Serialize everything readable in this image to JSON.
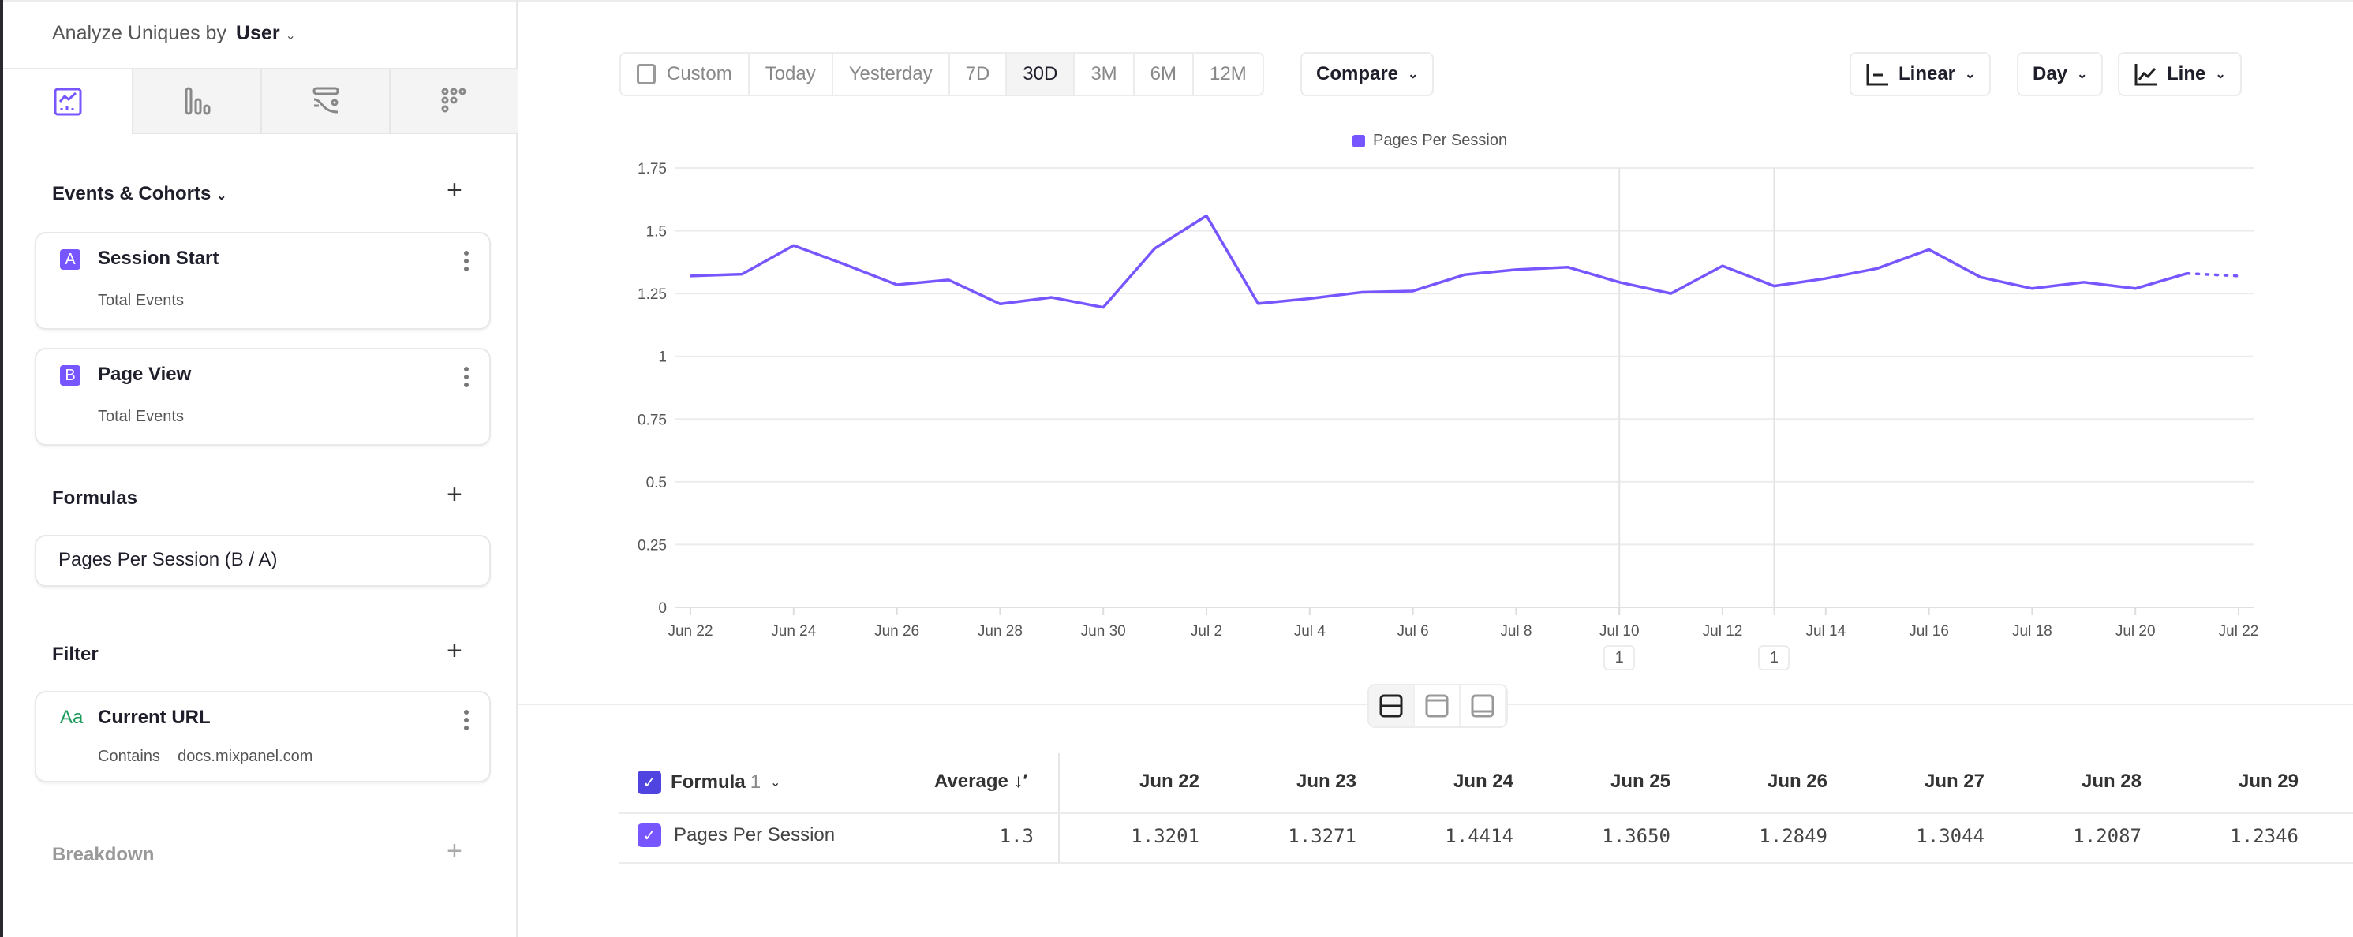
{
  "sidebar": {
    "analyze_label": "Analyze Uniques by",
    "analyze_value": "User",
    "tabs": [
      {
        "icon": "insights-icon",
        "active": true
      },
      {
        "icon": "funnels-icon"
      },
      {
        "icon": "flows-icon"
      },
      {
        "icon": "retention-icon"
      }
    ],
    "events_title": "Events & Cohorts",
    "events": [
      {
        "letter": "A",
        "name": "Session Start",
        "measure": "Total Events"
      },
      {
        "letter": "B",
        "name": "Page View",
        "measure": "Total Events"
      }
    ],
    "formulas_title": "Formulas",
    "formula": "Pages Per Session (B / A)",
    "filter_title": "Filter",
    "filter": {
      "type_icon": "Aa",
      "property": "Current URL",
      "operator": "Contains",
      "value": "docs.mixpanel.com"
    },
    "breakdown_title": "Breakdown"
  },
  "toolbar": {
    "date_ranges": [
      "Custom",
      "Today",
      "Yesterday",
      "7D",
      "30D",
      "3M",
      "6M",
      "12M"
    ],
    "selected_range": "30D",
    "compare": "Compare",
    "scale": "Linear",
    "interval": "Day",
    "chart_type": "Line"
  },
  "colors": {
    "accent": "#7856ff",
    "formula_check": "#4f44e0",
    "filter_icon": "#1a9a5b"
  },
  "chart_data": {
    "type": "line",
    "legend": [
      "Pages Per Session"
    ],
    "x": [
      "Jun 22",
      "Jun 23",
      "Jun 24",
      "Jun 25",
      "Jun 26",
      "Jun 27",
      "Jun 28",
      "Jun 29",
      "Jun 30",
      "Jul 1",
      "Jul 2",
      "Jul 3",
      "Jul 4",
      "Jul 5",
      "Jul 6",
      "Jul 7",
      "Jul 8",
      "Jul 9",
      "Jul 10",
      "Jul 11",
      "Jul 12",
      "Jul 13",
      "Jul 14",
      "Jul 15",
      "Jul 16",
      "Jul 17",
      "Jul 18",
      "Jul 19",
      "Jul 20",
      "Jul 21",
      "Jul 22"
    ],
    "series": [
      {
        "name": "Pages Per Session",
        "values": [
          1.3201,
          1.3271,
          1.4414,
          1.365,
          1.2849,
          1.3044,
          1.2087,
          1.2346,
          1.195,
          1.43,
          1.56,
          1.21,
          1.23,
          1.255,
          1.26,
          1.325,
          1.345,
          1.355,
          1.295,
          1.25,
          1.36,
          1.28,
          1.31,
          1.35,
          1.425,
          1.315,
          1.27,
          1.295,
          1.27,
          1.33,
          1.32
        ]
      }
    ],
    "partial_last_point": true,
    "yticks": [
      "0",
      "0.25",
      "0.5",
      "0.75",
      "1",
      "1.25",
      "1.5",
      "1.75"
    ],
    "ylim": [
      0,
      1.75
    ],
    "xticks": [
      "Jun 22",
      "Jun 24",
      "Jun 26",
      "Jun 28",
      "Jun 30",
      "Jul 2",
      "Jul 4",
      "Jul 6",
      "Jul 8",
      "Jul 10",
      "Jul 12",
      "Jul 14",
      "Jul 16",
      "Jul 18",
      "Jul 20",
      "Jul 22"
    ],
    "annotations": [
      {
        "date": "Jul 10",
        "count": "1"
      },
      {
        "date": "Jul 13",
        "count": "1"
      }
    ],
    "grid": true
  },
  "table": {
    "group_label": "Formula",
    "group_count": "1",
    "average_label": "Average",
    "columns": [
      "Jun 22",
      "Jun 23",
      "Jun 24",
      "Jun 25",
      "Jun 26",
      "Jun 27",
      "Jun 28",
      "Jun 29"
    ],
    "rows": [
      {
        "name": "Pages Per Session",
        "average": "1.3",
        "values": [
          "1.3201",
          "1.3271",
          "1.4414",
          "1.3650",
          "1.2849",
          "1.3044",
          "1.2087",
          "1.2346"
        ]
      }
    ]
  }
}
